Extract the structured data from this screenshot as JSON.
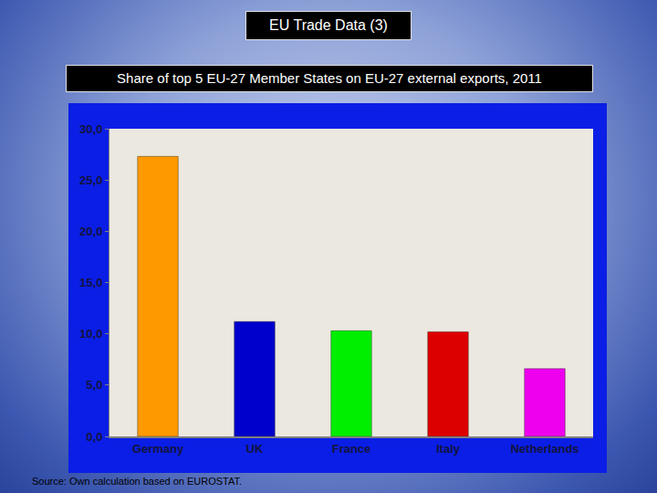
{
  "chart_data": {
    "type": "bar",
    "title": "EU Trade Data (3)",
    "subtitle": "Share of top 5 EU-27 Member States on EU-27 external exports, 2011",
    "categories": [
      "Germany",
      "UK",
      "France",
      "Italy",
      "Netherlands"
    ],
    "values": [
      27.3,
      11.2,
      10.3,
      10.2,
      6.6
    ],
    "colors": [
      "#ff9900",
      "#0000cc",
      "#00ee00",
      "#dd0000",
      "#ee00ee"
    ],
    "ylim": [
      0,
      30
    ],
    "yticks": [
      {
        "value": 0,
        "label": "0,0"
      },
      {
        "value": 5,
        "label": "5,0"
      },
      {
        "value": 10,
        "label": "10,0"
      },
      {
        "value": 15,
        "label": "15,0"
      },
      {
        "value": 20,
        "label": "20,0"
      },
      {
        "value": 25,
        "label": "25,0"
      },
      {
        "value": 30,
        "label": "30,0"
      }
    ],
    "grid": false,
    "annotations": [
      "Source: Own calculation based on EUROSTAT."
    ]
  }
}
